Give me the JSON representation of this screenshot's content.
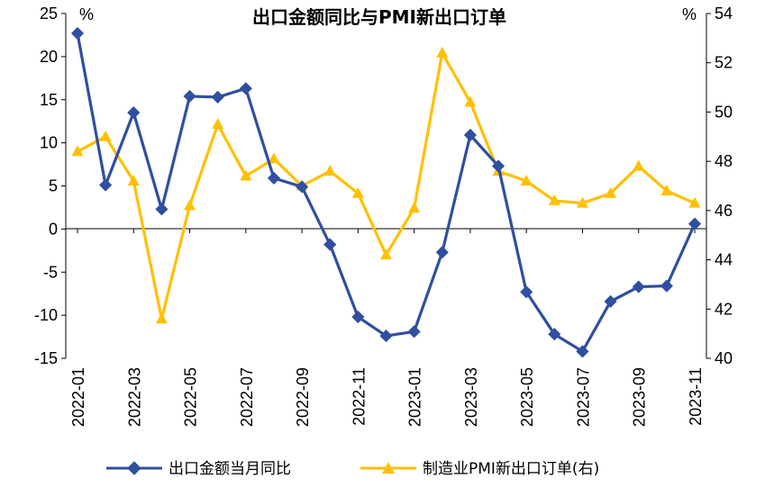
{
  "chart_data": {
    "type": "line",
    "title": "出口金额同比与PMI新出口订单",
    "left_unit": "%",
    "right_unit": "%",
    "colors": {
      "export": "#2F4F9F",
      "pmi": "#FFC000"
    },
    "x": [
      "2022-01",
      "2022-02",
      "2022-03",
      "2022-04",
      "2022-05",
      "2022-06",
      "2022-07",
      "2022-08",
      "2022-09",
      "2022-10",
      "2022-11",
      "2022-12",
      "2023-01",
      "2023-02",
      "2023-03",
      "2023-04",
      "2023-05",
      "2023-06",
      "2023-07",
      "2023-08",
      "2023-09",
      "2023-10",
      "2023-11"
    ],
    "x_tick_labels": [
      "2022-01",
      "2022-03",
      "2022-05",
      "2022-07",
      "2022-09",
      "2022-11",
      "2023-01",
      "2023-03",
      "2023-05",
      "2023-07",
      "2023-09",
      "2023-11"
    ],
    "y_left": {
      "min": -15,
      "max": 25,
      "ticks": [
        "25",
        "20",
        "15",
        "10",
        "5",
        "0",
        "-5",
        "-10",
        "-15"
      ]
    },
    "y_right": {
      "min": 40,
      "max": 54,
      "ticks": [
        "54",
        "52",
        "50",
        "48",
        "46",
        "44",
        "42",
        "40"
      ]
    },
    "series": [
      {
        "name": "出口金额当月同比",
        "axis": "left",
        "marker": "diamond",
        "values": [
          22.7,
          5.1,
          13.5,
          2.3,
          15.4,
          15.3,
          16.3,
          5.9,
          4.9,
          -1.8,
          -10.2,
          -12.4,
          -11.9,
          -2.7,
          10.9,
          7.3,
          -7.3,
          -12.2,
          -14.2,
          -8.4,
          -6.7,
          -6.6,
          0.6
        ]
      },
      {
        "name": "制造业PMI新出口订单(右)",
        "axis": "right",
        "marker": "triangle",
        "values": [
          48.4,
          49.0,
          47.2,
          41.6,
          46.2,
          49.5,
          47.4,
          48.1,
          47.0,
          47.6,
          46.7,
          44.2,
          46.1,
          52.4,
          50.4,
          47.6,
          47.2,
          46.4,
          46.3,
          46.7,
          47.8,
          46.8,
          46.3
        ]
      }
    ],
    "legend_position": "bottom",
    "grid": false
  }
}
